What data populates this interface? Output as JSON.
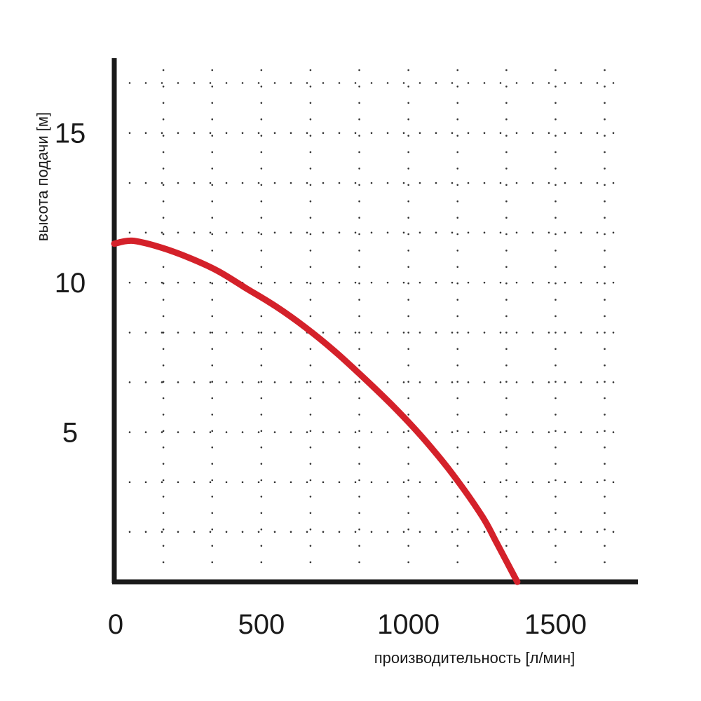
{
  "chart_data": {
    "type": "line",
    "title": "",
    "xlabel": "производительность [л/мин]",
    "ylabel": "высота подачи [м]",
    "xlim": [
      0,
      1780
    ],
    "ylim": [
      0,
      17.5
    ],
    "x_ticks": [
      0,
      500,
      1000,
      1500
    ],
    "x_tick_labels": [
      "0",
      "500",
      "1000",
      "1500"
    ],
    "y_ticks": [
      5,
      10,
      15
    ],
    "y_tick_labels": [
      "5",
      "10",
      "15"
    ],
    "grid": true,
    "grid_style": "dotted",
    "x_grid": [
      167,
      333,
      500,
      667,
      833,
      1000,
      1167,
      1333,
      1500,
      1667
    ],
    "y_grid": [
      1.67,
      3.33,
      5,
      6.67,
      8.33,
      10,
      11.67,
      13.33,
      15,
      16.67
    ],
    "series": [
      {
        "color": "#d4212a",
        "x": [
          0,
          60,
          150,
          250,
          350,
          450,
          550,
          650,
          750,
          850,
          950,
          1050,
          1150,
          1250,
          1300,
          1370
        ],
        "y": [
          11.3,
          11.4,
          11.2,
          10.85,
          10.4,
          9.8,
          9.2,
          8.5,
          7.7,
          6.8,
          5.85,
          4.8,
          3.6,
          2.2,
          1.3,
          0
        ]
      }
    ]
  }
}
